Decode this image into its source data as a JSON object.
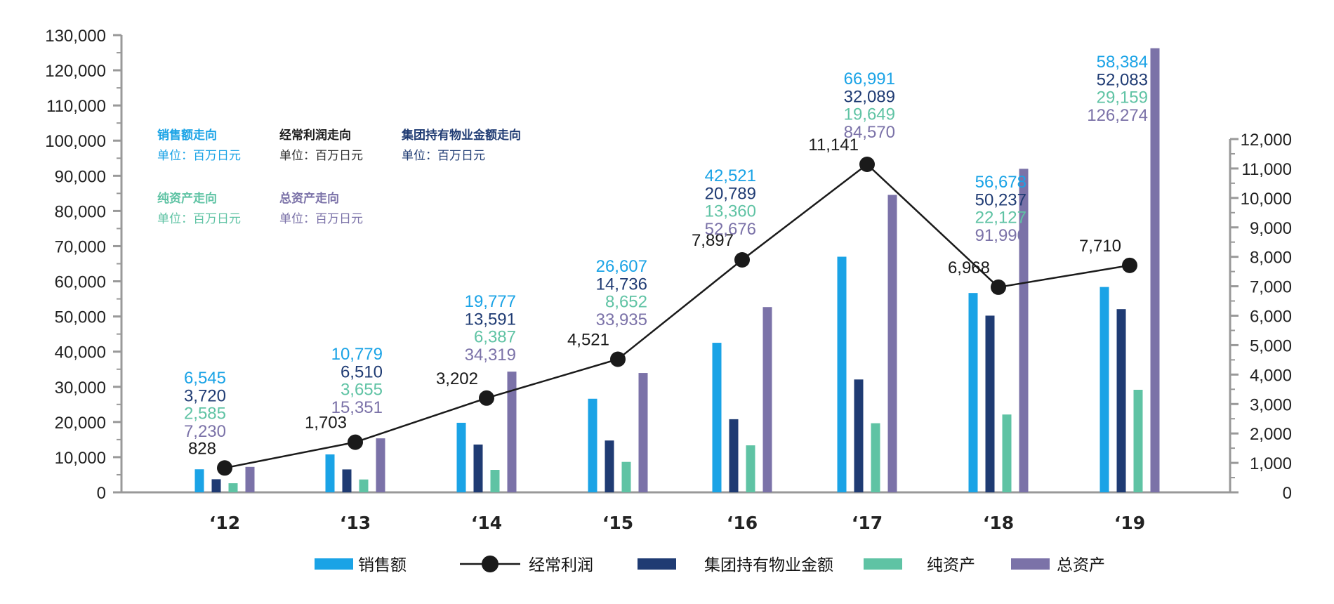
{
  "chart_data": {
    "type": "bar",
    "categories": [
      "‘12",
      "‘13",
      "‘14",
      "‘15",
      "‘16",
      "‘17",
      "‘18",
      "‘19"
    ],
    "left_axis": {
      "ylim": [
        0,
        130000
      ],
      "ticks": [
        0,
        10000,
        20000,
        30000,
        40000,
        50000,
        60000,
        70000,
        80000,
        90000,
        100000,
        110000,
        120000,
        130000
      ],
      "tick_labels": [
        "0",
        "10,000",
        "20,000",
        "30,000",
        "40,000",
        "50,000",
        "60,000",
        "70,000",
        "80,000",
        "90,000",
        "100,000",
        "110,000",
        "120,000",
        "130,000"
      ]
    },
    "right_axis": {
      "ylim": [
        0,
        12000
      ],
      "ticks": [
        0,
        1000,
        2000,
        3000,
        4000,
        5000,
        6000,
        7000,
        8000,
        9000,
        10000,
        11000,
        12000
      ],
      "tick_labels": [
        "0",
        "1,000",
        "2,000",
        "3,000",
        "4,000",
        "5,000",
        "6,000",
        "7,000",
        "8,000",
        "9,000",
        "10,000",
        "11,000",
        "12,000"
      ]
    },
    "series": [
      {
        "name": "销售额",
        "kind": "bar",
        "axis": "left",
        "color": "#1aa3e6",
        "values": [
          6545,
          10779,
          19777,
          26607,
          42521,
          66991,
          56678,
          58384
        ],
        "value_labels": [
          "6,545",
          "10,779",
          "19,777",
          "26,607",
          "42,521",
          "66,991",
          "56,678",
          "58,384"
        ]
      },
      {
        "name": "集团持有物业金额",
        "kind": "bar",
        "axis": "left",
        "color": "#1f3b73",
        "values": [
          3720,
          6510,
          13591,
          14736,
          20789,
          32089,
          50237,
          52083
        ],
        "value_labels": [
          "3,720",
          "6,510",
          "13,591",
          "14,736",
          "20,789",
          "32,089",
          "50,237",
          "52,083"
        ]
      },
      {
        "name": "纯资产",
        "kind": "bar",
        "axis": "left",
        "color": "#5fc3a4",
        "values": [
          2585,
          3655,
          6387,
          8652,
          13360,
          19649,
          22127,
          29159
        ],
        "value_labels": [
          "2,585",
          "3,655",
          "6,387",
          "8,652",
          "13,360",
          "19,649",
          "22,127",
          "29,159"
        ]
      },
      {
        "name": "总资产",
        "kind": "bar",
        "axis": "left",
        "color": "#7b72a8",
        "values": [
          7230,
          15351,
          34319,
          33935,
          52676,
          84570,
          91990,
          126274
        ],
        "value_labels": [
          "7,230",
          "15,351",
          "34,319",
          "33,935",
          "52,676",
          "84,570",
          "91,990",
          "126,274"
        ]
      },
      {
        "name": "经常利润",
        "kind": "line",
        "axis": "right",
        "color": "#1a1a1a",
        "values": [
          828,
          1703,
          3202,
          4521,
          7897,
          11141,
          6968,
          7710
        ],
        "value_labels": [
          "828",
          "1,703",
          "3,202",
          "4,521",
          "7,897",
          "11,141",
          "6,968",
          "7,710"
        ]
      }
    ],
    "legend": {
      "position": "bottom",
      "items": [
        {
          "label": "销售额",
          "marker": "bar",
          "color": "#1aa3e6"
        },
        {
          "label": "经常利润",
          "marker": "line-dot",
          "color": "#1a1a1a"
        },
        {
          "label": "集团持有物业金额",
          "marker": "bar",
          "color": "#1f3b73"
        },
        {
          "label": "纯资产",
          "marker": "bar",
          "color": "#5fc3a4"
        },
        {
          "label": "总资产",
          "marker": "bar",
          "color": "#7b72a8"
        }
      ]
    },
    "grid": false
  },
  "notes": [
    {
      "title": "销售额走向",
      "unit": "单位：百万日元",
      "color": "#1aa3e6"
    },
    {
      "title": "经常利润走向",
      "unit": "单位：百万日元",
      "color": "#1a1a1a",
      "unit_color": "#333333"
    },
    {
      "title": "集团持有物业金额走向",
      "unit": "单位：百万日元",
      "color": "#1f3b73"
    },
    {
      "title": "纯资产走向",
      "unit": "单位：百万日元",
      "color": "#5fc3a4"
    },
    {
      "title": "总资产走向",
      "unit": "单位：百万日元",
      "color": "#7b72a8"
    }
  ]
}
